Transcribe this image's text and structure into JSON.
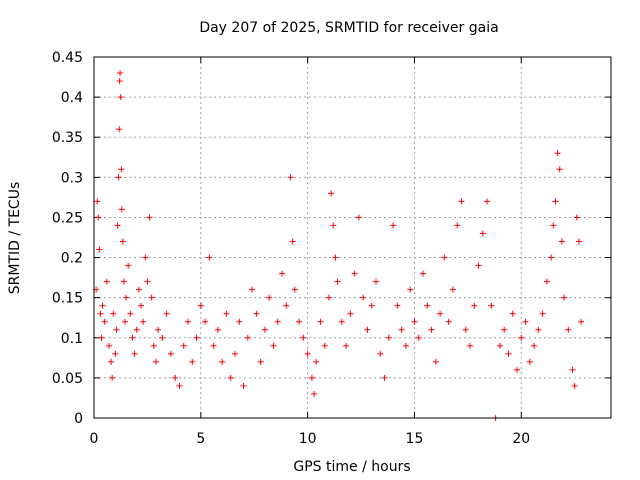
{
  "chart_data": {
    "type": "scatter",
    "title": "Day 207 of 2025, SRMTID for receiver gaia",
    "xlabel": "GPS time / hours",
    "ylabel": "SRMTID / TECUs",
    "xlim": [
      0,
      24.2
    ],
    "ylim": [
      0,
      0.45
    ],
    "xticks": [
      0,
      5,
      10,
      15,
      20
    ],
    "xtick_labels": [
      "0",
      "5",
      "10",
      "15",
      "20"
    ],
    "yticks": [
      0,
      0.05,
      0.1,
      0.15,
      0.2,
      0.25,
      0.3,
      0.35,
      0.4,
      0.45
    ],
    "ytick_labels": [
      "0",
      "0.05",
      "0.1",
      "0.15",
      "0.2",
      "0.25",
      "0.3",
      "0.35",
      "0.4",
      "0.45"
    ],
    "grid": true,
    "marker": "+",
    "color": "#ff0000",
    "series": [
      {
        "name": "SRMTID",
        "points": [
          [
            0.1,
            0.16
          ],
          [
            0.15,
            0.27
          ],
          [
            0.2,
            0.25
          ],
          [
            0.25,
            0.21
          ],
          [
            0.3,
            0.13
          ],
          [
            0.35,
            0.1
          ],
          [
            0.4,
            0.14
          ],
          [
            0.5,
            0.12
          ],
          [
            0.6,
            0.17
          ],
          [
            0.7,
            0.09
          ],
          [
            0.8,
            0.07
          ],
          [
            0.85,
            0.05
          ],
          [
            0.9,
            0.13
          ],
          [
            1.0,
            0.08
          ],
          [
            1.05,
            0.11
          ],
          [
            1.1,
            0.24
          ],
          [
            1.15,
            0.3
          ],
          [
            1.18,
            0.36
          ],
          [
            1.2,
            0.42
          ],
          [
            1.22,
            0.43
          ],
          [
            1.25,
            0.4
          ],
          [
            1.28,
            0.31
          ],
          [
            1.3,
            0.26
          ],
          [
            1.35,
            0.22
          ],
          [
            1.4,
            0.17
          ],
          [
            1.45,
            0.12
          ],
          [
            1.5,
            0.15
          ],
          [
            1.6,
            0.19
          ],
          [
            1.7,
            0.13
          ],
          [
            1.8,
            0.1
          ],
          [
            1.9,
            0.08
          ],
          [
            2.0,
            0.11
          ],
          [
            2.1,
            0.16
          ],
          [
            2.2,
            0.14
          ],
          [
            2.3,
            0.12
          ],
          [
            2.4,
            0.2
          ],
          [
            2.5,
            0.17
          ],
          [
            2.6,
            0.25
          ],
          [
            2.7,
            0.15
          ],
          [
            2.8,
            0.09
          ],
          [
            2.9,
            0.07
          ],
          [
            3.0,
            0.11
          ],
          [
            3.2,
            0.1
          ],
          [
            3.4,
            0.13
          ],
          [
            3.6,
            0.08
          ],
          [
            3.8,
            0.05
          ],
          [
            4.0,
            0.04
          ],
          [
            4.2,
            0.09
          ],
          [
            4.4,
            0.12
          ],
          [
            4.6,
            0.07
          ],
          [
            4.8,
            0.1
          ],
          [
            5.0,
            0.14
          ],
          [
            5.2,
            0.12
          ],
          [
            5.4,
            0.2
          ],
          [
            5.6,
            0.09
          ],
          [
            5.8,
            0.11
          ],
          [
            6.0,
            0.07
          ],
          [
            6.2,
            0.13
          ],
          [
            6.4,
            0.05
          ],
          [
            6.6,
            0.08
          ],
          [
            6.8,
            0.12
          ],
          [
            7.0,
            0.04
          ],
          [
            7.2,
            0.1
          ],
          [
            7.4,
            0.16
          ],
          [
            7.6,
            0.13
          ],
          [
            7.8,
            0.07
          ],
          [
            8.0,
            0.11
          ],
          [
            8.2,
            0.15
          ],
          [
            8.4,
            0.09
          ],
          [
            8.6,
            0.12
          ],
          [
            8.8,
            0.18
          ],
          [
            9.0,
            0.14
          ],
          [
            9.2,
            0.3
          ],
          [
            9.3,
            0.22
          ],
          [
            9.4,
            0.16
          ],
          [
            9.6,
            0.12
          ],
          [
            9.8,
            0.1
          ],
          [
            10.0,
            0.08
          ],
          [
            10.2,
            0.05
          ],
          [
            10.3,
            0.03
          ],
          [
            10.4,
            0.07
          ],
          [
            10.6,
            0.12
          ],
          [
            10.8,
            0.09
          ],
          [
            11.0,
            0.15
          ],
          [
            11.1,
            0.28
          ],
          [
            11.2,
            0.24
          ],
          [
            11.3,
            0.2
          ],
          [
            11.4,
            0.17
          ],
          [
            11.6,
            0.12
          ],
          [
            11.8,
            0.09
          ],
          [
            12.0,
            0.13
          ],
          [
            12.2,
            0.18
          ],
          [
            12.4,
            0.25
          ],
          [
            12.6,
            0.15
          ],
          [
            12.8,
            0.11
          ],
          [
            13.0,
            0.14
          ],
          [
            13.2,
            0.17
          ],
          [
            13.4,
            0.08
          ],
          [
            13.6,
            0.05
          ],
          [
            13.8,
            0.1
          ],
          [
            14.0,
            0.24
          ],
          [
            14.2,
            0.14
          ],
          [
            14.4,
            0.11
          ],
          [
            14.6,
            0.09
          ],
          [
            14.8,
            0.16
          ],
          [
            15.0,
            0.12
          ],
          [
            15.2,
            0.1
          ],
          [
            15.4,
            0.18
          ],
          [
            15.6,
            0.14
          ],
          [
            15.8,
            0.11
          ],
          [
            16.0,
            0.07
          ],
          [
            16.2,
            0.13
          ],
          [
            16.4,
            0.2
          ],
          [
            16.6,
            0.12
          ],
          [
            16.8,
            0.16
          ],
          [
            17.0,
            0.24
          ],
          [
            17.2,
            0.27
          ],
          [
            17.4,
            0.11
          ],
          [
            17.6,
            0.09
          ],
          [
            17.8,
            0.14
          ],
          [
            18.0,
            0.19
          ],
          [
            18.2,
            0.23
          ],
          [
            18.4,
            0.27
          ],
          [
            18.6,
            0.14
          ],
          [
            18.8,
            0.0
          ],
          [
            19.0,
            0.09
          ],
          [
            19.2,
            0.11
          ],
          [
            19.4,
            0.08
          ],
          [
            19.6,
            0.13
          ],
          [
            19.8,
            0.06
          ],
          [
            20.0,
            0.1
          ],
          [
            20.2,
            0.12
          ],
          [
            20.4,
            0.07
          ],
          [
            20.6,
            0.09
          ],
          [
            20.8,
            0.11
          ],
          [
            21.0,
            0.13
          ],
          [
            21.2,
            0.17
          ],
          [
            21.4,
            0.2
          ],
          [
            21.5,
            0.24
          ],
          [
            21.6,
            0.27
          ],
          [
            21.7,
            0.33
          ],
          [
            21.8,
            0.31
          ],
          [
            21.9,
            0.22
          ],
          [
            22.0,
            0.15
          ],
          [
            22.2,
            0.11
          ],
          [
            22.4,
            0.06
          ],
          [
            22.5,
            0.04
          ],
          [
            22.6,
            0.25
          ],
          [
            22.7,
            0.22
          ],
          [
            22.8,
            0.12
          ]
        ]
      }
    ]
  }
}
